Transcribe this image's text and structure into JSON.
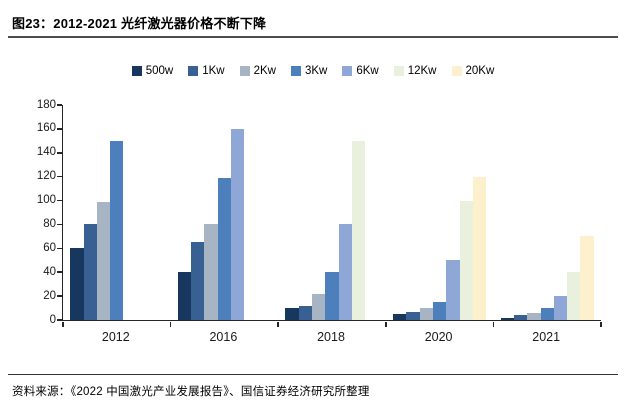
{
  "figure": {
    "title": "图23：2012-2021 光纤激光器价格不断下降",
    "source": "资料来源：《2022 中国激光产业发展报告》、国信证券经济研究所整理"
  },
  "chart_data": {
    "type": "bar",
    "title": "2012-2021 光纤激光器价格不断下降",
    "categories": [
      "2012",
      "2016",
      "2018",
      "2020",
      "2021"
    ],
    "series": [
      {
        "name": "500w",
        "color": "#17375E",
        "values": [
          60,
          40,
          10,
          5,
          2
        ]
      },
      {
        "name": "1Kw",
        "color": "#386092",
        "values": [
          80,
          65,
          12,
          7,
          4
        ]
      },
      {
        "name": "2Kw",
        "color": "#A6B4C4",
        "values": [
          99,
          80,
          22,
          10,
          6
        ]
      },
      {
        "name": "3Kw",
        "color": "#4D7FBD",
        "values": [
          150,
          119,
          40,
          15,
          10
        ]
      },
      {
        "name": "6Kw",
        "color": "#8FA7D6",
        "values": [
          null,
          160,
          80,
          50,
          20
        ]
      },
      {
        "name": "12Kw",
        "color": "#E9F1DE",
        "values": [
          null,
          null,
          150,
          100,
          40
        ]
      },
      {
        "name": "20Kw",
        "color": "#FDF0CC",
        "values": [
          null,
          null,
          null,
          120,
          70
        ]
      }
    ],
    "xlabel": "",
    "ylabel": "",
    "ylim": [
      0,
      180
    ],
    "ytick_step": 20,
    "grid": false,
    "legend_position": "top"
  }
}
